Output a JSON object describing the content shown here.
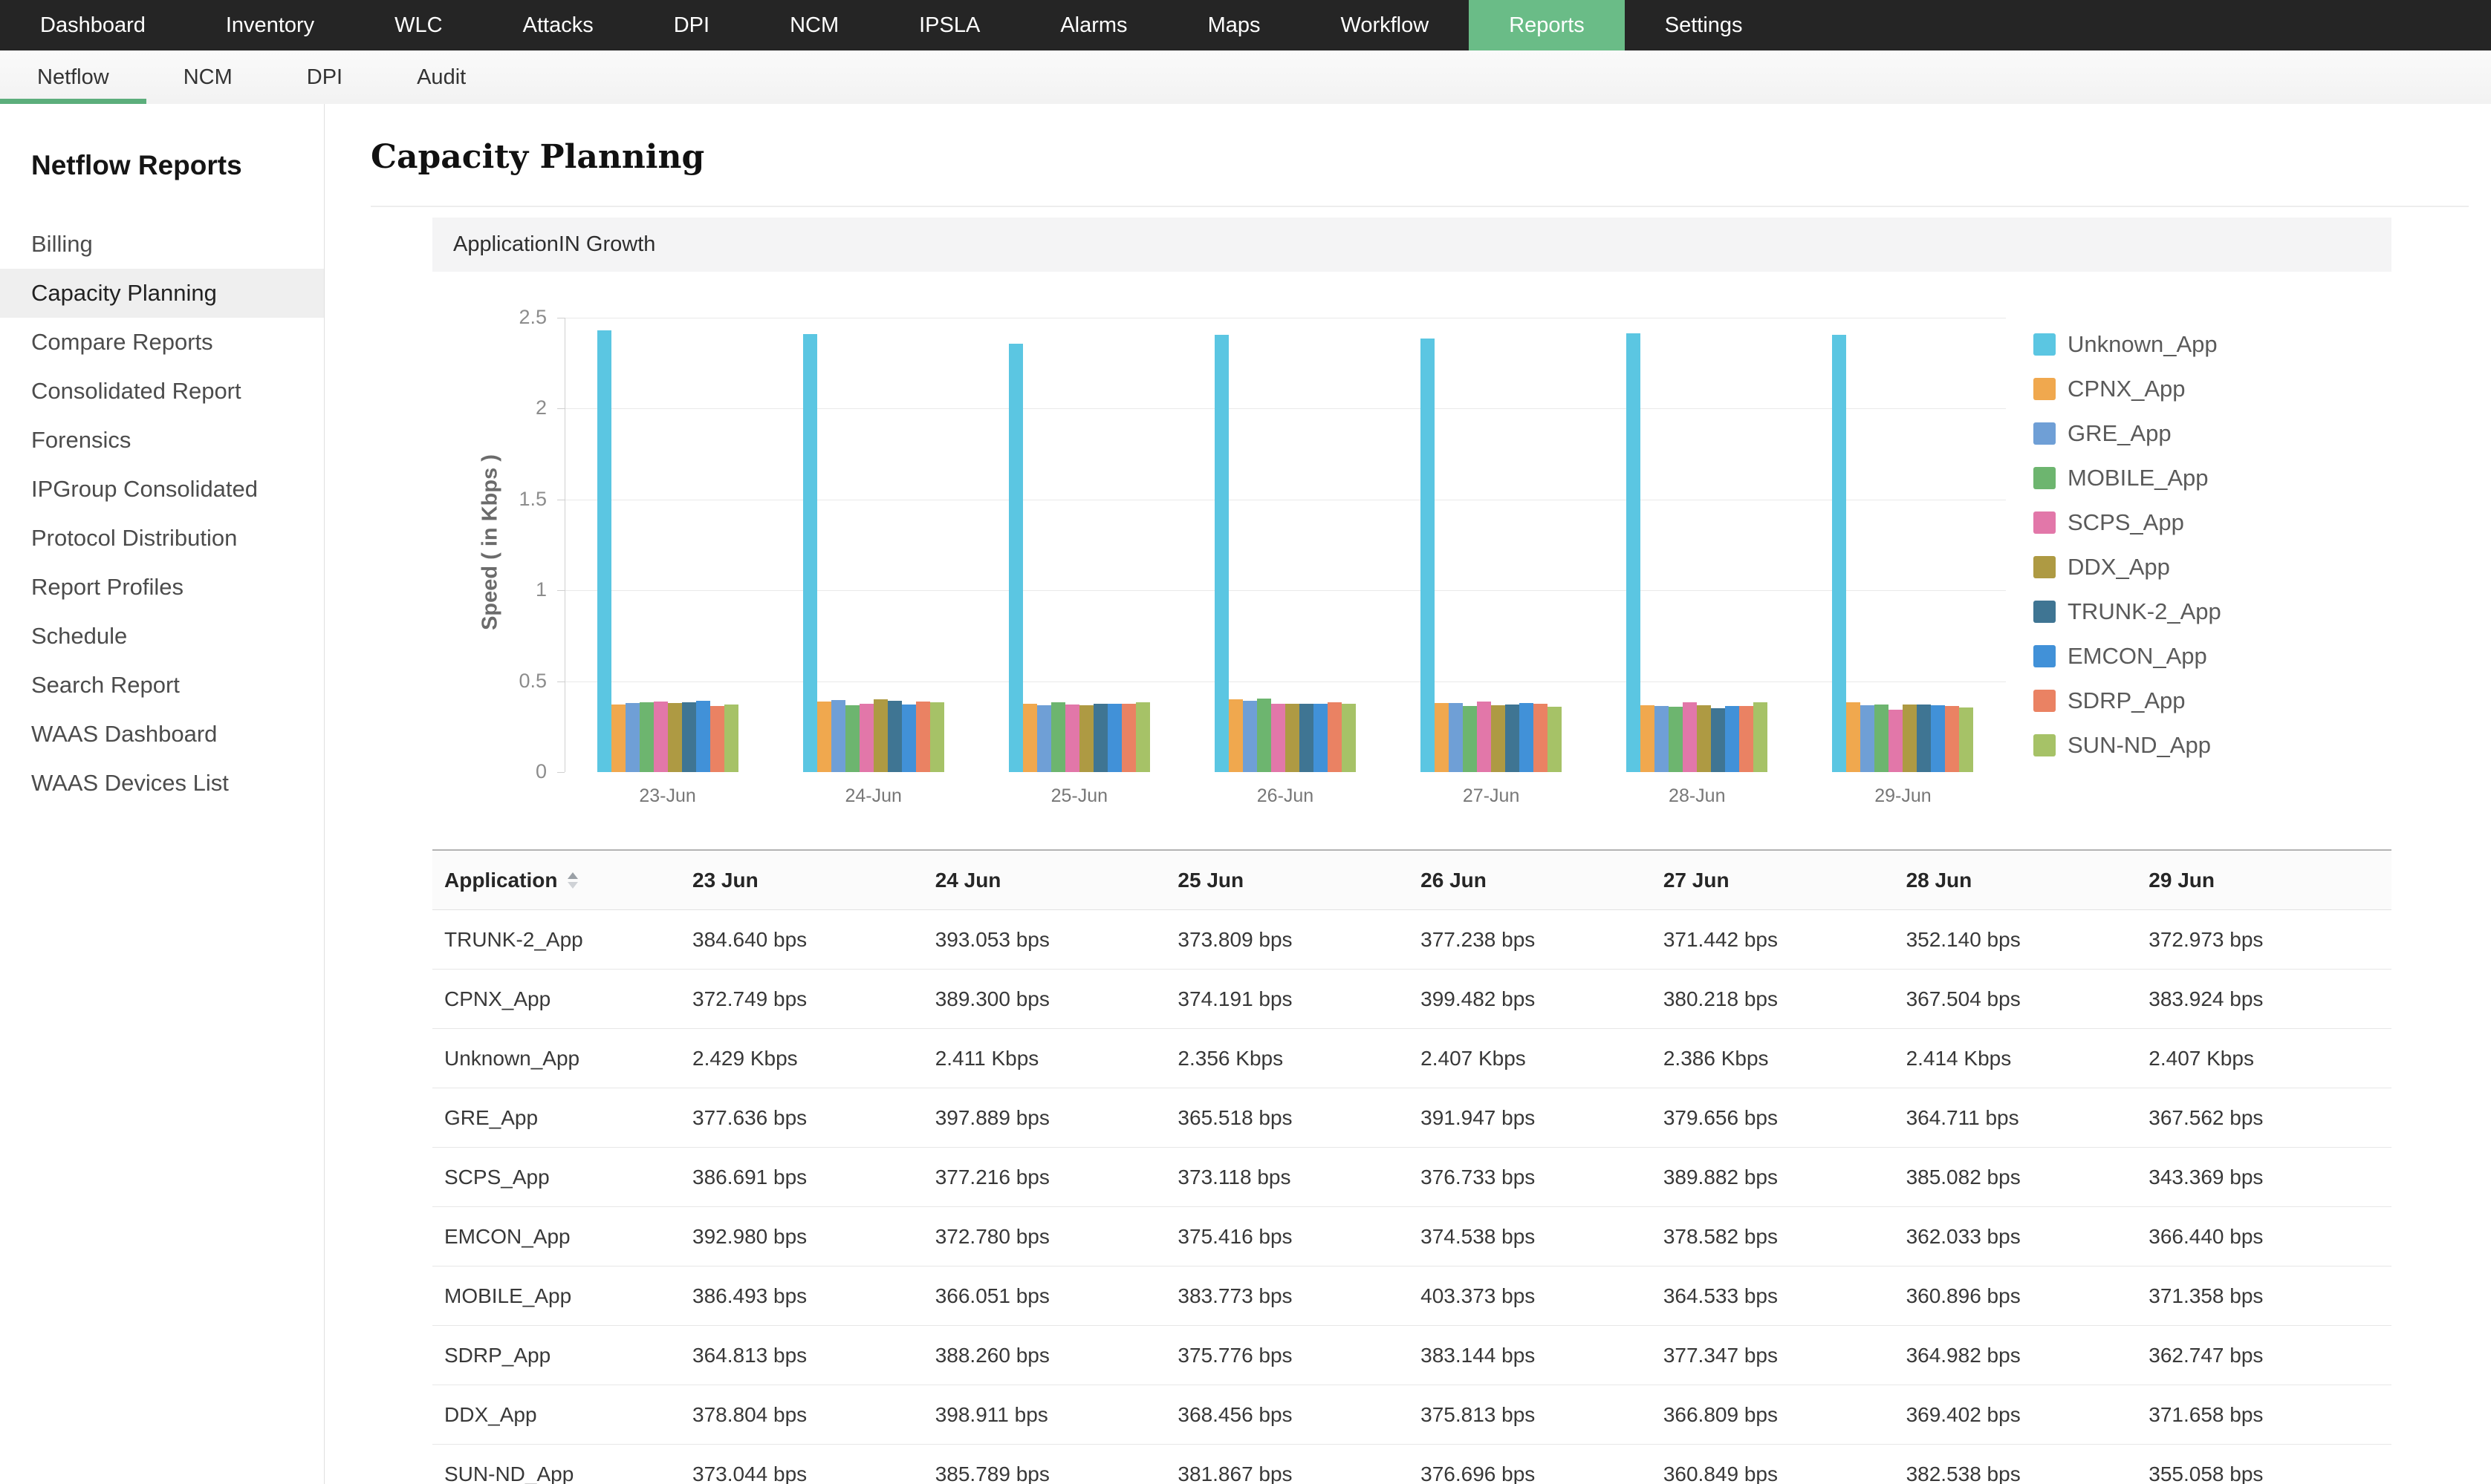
{
  "topnav": {
    "items": [
      {
        "label": "Dashboard",
        "active": false
      },
      {
        "label": "Inventory",
        "active": false
      },
      {
        "label": "WLC",
        "active": false
      },
      {
        "label": "Attacks",
        "active": false
      },
      {
        "label": "DPI",
        "active": false
      },
      {
        "label": "NCM",
        "active": false
      },
      {
        "label": "IPSLA",
        "active": false
      },
      {
        "label": "Alarms",
        "active": false
      },
      {
        "label": "Maps",
        "active": false
      },
      {
        "label": "Workflow",
        "active": false
      },
      {
        "label": "Reports",
        "active": true
      },
      {
        "label": "Settings",
        "active": false
      }
    ]
  },
  "subnav": {
    "items": [
      {
        "label": "Netflow",
        "active": true
      },
      {
        "label": "NCM",
        "active": false
      },
      {
        "label": "DPI",
        "active": false
      },
      {
        "label": "Audit",
        "active": false
      }
    ]
  },
  "sidebar": {
    "title": "Netflow Reports",
    "items": [
      {
        "label": "Billing",
        "active": false
      },
      {
        "label": "Capacity Planning",
        "active": true
      },
      {
        "label": "Compare Reports",
        "active": false
      },
      {
        "label": "Consolidated Report",
        "active": false
      },
      {
        "label": "Forensics",
        "active": false
      },
      {
        "label": "IPGroup Consolidated",
        "active": false
      },
      {
        "label": "Protocol Distribution",
        "active": false
      },
      {
        "label": "Report Profiles",
        "active": false
      },
      {
        "label": "Schedule",
        "active": false
      },
      {
        "label": "Search Report",
        "active": false
      },
      {
        "label": "WAAS Dashboard",
        "active": false
      },
      {
        "label": "WAAS Devices List",
        "active": false
      }
    ]
  },
  "page": {
    "title": "Capacity Planning"
  },
  "panel": {
    "title": "ApplicationIN Growth"
  },
  "colors": {
    "topnav_bg": "#252525",
    "accent_green": "#6abc87",
    "underline_green": "#5cae7c"
  },
  "chart_data": {
    "type": "bar",
    "title": "ApplicationIN Growth",
    "categories": [
      "23-Jun",
      "24-Jun",
      "25-Jun",
      "26-Jun",
      "27-Jun",
      "28-Jun",
      "29-Jun"
    ],
    "series": [
      {
        "name": "Unknown_App",
        "color": "#5bc6e2",
        "values": [
          2.429,
          2.411,
          2.356,
          2.407,
          2.386,
          2.414,
          2.407
        ]
      },
      {
        "name": "CPNX_App",
        "color": "#f0a84e",
        "values": [
          0.373,
          0.389,
          0.374,
          0.399,
          0.38,
          0.368,
          0.384
        ]
      },
      {
        "name": "GRE_App",
        "color": "#6f9fd6",
        "values": [
          0.378,
          0.398,
          0.366,
          0.392,
          0.38,
          0.365,
          0.368
        ]
      },
      {
        "name": "MOBILE_App",
        "color": "#6db56f",
        "values": [
          0.386,
          0.366,
          0.384,
          0.403,
          0.365,
          0.361,
          0.371
        ]
      },
      {
        "name": "SCPS_App",
        "color": "#e277a9",
        "values": [
          0.387,
          0.377,
          0.373,
          0.377,
          0.39,
          0.385,
          0.343
        ]
      },
      {
        "name": "DDX_App",
        "color": "#ae9a43",
        "values": [
          0.379,
          0.399,
          0.368,
          0.376,
          0.367,
          0.369,
          0.372
        ]
      },
      {
        "name": "TRUNK-2_App",
        "color": "#3f7593",
        "values": [
          0.385,
          0.393,
          0.374,
          0.377,
          0.371,
          0.352,
          0.373
        ]
      },
      {
        "name": "EMCON_App",
        "color": "#4191d8",
        "values": [
          0.393,
          0.373,
          0.375,
          0.375,
          0.379,
          0.362,
          0.366
        ]
      },
      {
        "name": "SDRP_App",
        "color": "#ea8263",
        "values": [
          0.365,
          0.388,
          0.376,
          0.383,
          0.377,
          0.365,
          0.363
        ]
      },
      {
        "name": "SUN-ND_App",
        "color": "#a6c267",
        "values": [
          0.373,
          0.386,
          0.382,
          0.377,
          0.361,
          0.383,
          0.355
        ]
      }
    ],
    "xlabel": "",
    "ylabel": "Speed ( in Kbps )",
    "ylim": [
      0,
      2.5
    ],
    "yticks": [
      0,
      0.5,
      1,
      1.5,
      2,
      2.5
    ],
    "grid": true,
    "legend_position": "right"
  },
  "table": {
    "columns": [
      "Application",
      "23 Jun",
      "24 Jun",
      "25 Jun",
      "26 Jun",
      "27 Jun",
      "28 Jun",
      "29 Jun"
    ],
    "sorted_by": "Application",
    "rows": [
      {
        "app": "TRUNK-2_App",
        "values": [
          "384.640 bps",
          "393.053 bps",
          "373.809 bps",
          "377.238 bps",
          "371.442 bps",
          "352.140 bps",
          "372.973 bps"
        ]
      },
      {
        "app": "CPNX_App",
        "values": [
          "372.749 bps",
          "389.300 bps",
          "374.191 bps",
          "399.482 bps",
          "380.218 bps",
          "367.504 bps",
          "383.924 bps"
        ]
      },
      {
        "app": "Unknown_App",
        "values": [
          "2.429 Kbps",
          "2.411 Kbps",
          "2.356 Kbps",
          "2.407 Kbps",
          "2.386 Kbps",
          "2.414 Kbps",
          "2.407 Kbps"
        ]
      },
      {
        "app": "GRE_App",
        "values": [
          "377.636 bps",
          "397.889 bps",
          "365.518 bps",
          "391.947 bps",
          "379.656 bps",
          "364.711 bps",
          "367.562 bps"
        ]
      },
      {
        "app": "SCPS_App",
        "values": [
          "386.691 bps",
          "377.216 bps",
          "373.118 bps",
          "376.733 bps",
          "389.882 bps",
          "385.082 bps",
          "343.369 bps"
        ]
      },
      {
        "app": "EMCON_App",
        "values": [
          "392.980 bps",
          "372.780 bps",
          "375.416 bps",
          "374.538 bps",
          "378.582 bps",
          "362.033 bps",
          "366.440 bps"
        ]
      },
      {
        "app": "MOBILE_App",
        "values": [
          "386.493 bps",
          "366.051 bps",
          "383.773 bps",
          "403.373 bps",
          "364.533 bps",
          "360.896 bps",
          "371.358 bps"
        ]
      },
      {
        "app": "SDRP_App",
        "values": [
          "364.813 bps",
          "388.260 bps",
          "375.776 bps",
          "383.144 bps",
          "377.347 bps",
          "364.982 bps",
          "362.747 bps"
        ]
      },
      {
        "app": "DDX_App",
        "values": [
          "378.804 bps",
          "398.911 bps",
          "368.456 bps",
          "375.813 bps",
          "366.809 bps",
          "369.402 bps",
          "371.658 bps"
        ]
      },
      {
        "app": "SUN-ND_App",
        "values": [
          "373.044 bps",
          "385.789 bps",
          "381.867 bps",
          "376.696 bps",
          "360.849 bps",
          "382.538 bps",
          "355.058 bps"
        ]
      }
    ]
  }
}
